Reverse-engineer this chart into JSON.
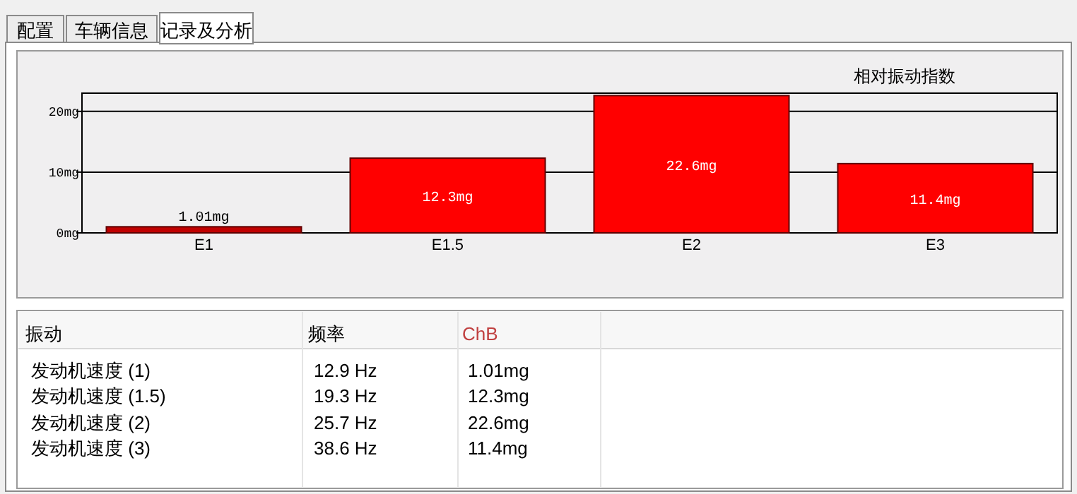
{
  "chart_data": {
    "type": "bar",
    "title": "相对振动指数",
    "categories": [
      "E1",
      "E1.5",
      "E2",
      "E3"
    ],
    "values": [
      1.01,
      12.3,
      22.6,
      11.4
    ],
    "colors": [
      "#c00000",
      "#ff0000",
      "#ff0000",
      "#ff0000"
    ],
    "value_labels": [
      "1.01mg",
      "12.3mg",
      "22.6mg",
      "11.4mg"
    ],
    "ylim": [
      0,
      23
    ],
    "yticks": [
      {
        "value": 0,
        "label": "0mg"
      },
      {
        "value": 10,
        "label": "10mg"
      },
      {
        "value": 20,
        "label": "20mg"
      }
    ],
    "grid": "y",
    "annotations": [
      "配置",
      "车辆信息",
      "记录及分析",
      "振动",
      "频率",
      "ChB",
      "发动机速度 (1)",
      "12.9 Hz",
      "1.01mg",
      "发动机速度 (1.5)",
      "19.3 Hz",
      "12.3mg",
      "发动机速度 (2)",
      "25.7 Hz",
      "22.6mg",
      "发动机速度 (3)",
      "38.6 Hz",
      "11.4mg"
    ]
  }
}
